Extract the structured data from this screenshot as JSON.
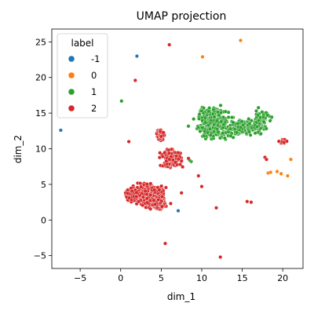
{
  "chart_data": {
    "type": "scatter",
    "title": "UMAP projection",
    "xlabel": "dim_1",
    "ylabel": "dim_2",
    "xlim": [
      -8.5,
      22.5
    ],
    "ylim": [
      -6.8,
      26.8
    ],
    "xticks": [
      -5,
      0,
      5,
      10,
      15,
      20
    ],
    "yticks": [
      -5,
      0,
      5,
      10,
      15,
      20,
      25
    ],
    "grid": false,
    "legend": {
      "title": "label",
      "placement": "upper-left",
      "entries": [
        {
          "label": "-1",
          "color": "#1f77b4"
        },
        {
          "label": "0",
          "color": "#ff7f0e"
        },
        {
          "label": "1",
          "color": "#2ca02c"
        },
        {
          "label": "2",
          "color": "#d62728"
        }
      ]
    },
    "series": [
      {
        "label": "-1",
        "color": "#1f77b4",
        "points": [
          [
            -7.4,
            12.6
          ],
          [
            2.0,
            23.0
          ],
          [
            7.1,
            1.3
          ]
        ]
      },
      {
        "label": "0",
        "color": "#ff7f0e",
        "points": [
          [
            14.8,
            25.2
          ],
          [
            10.1,
            22.9
          ],
          [
            18.2,
            6.6
          ],
          [
            18.5,
            6.7
          ],
          [
            19.3,
            6.8
          ],
          [
            19.8,
            6.5
          ],
          [
            20.6,
            6.2
          ],
          [
            21.0,
            8.5
          ]
        ]
      },
      {
        "label": "1",
        "color": "#2ca02c",
        "points": [
          [
            0.1,
            16.7
          ],
          [
            8.7,
            8.2
          ],
          [
            8.5,
            8.4
          ]
        ],
        "clusters": [
          {
            "center": [
              11.4,
              13.3
            ],
            "spread": [
              1.7,
              1.7
            ],
            "count": 260
          },
          {
            "center": [
              14.8,
              12.9
            ],
            "spread": [
              1.6,
              1.0
            ],
            "count": 130
          },
          {
            "center": [
              17.2,
              13.8
            ],
            "spread": [
              0.9,
              1.2
            ],
            "count": 110
          },
          {
            "center": [
              11.2,
              15.2
            ],
            "spread": [
              1.2,
              0.5
            ],
            "count": 60
          }
        ]
      },
      {
        "label": "2",
        "color": "#d62728",
        "points": [
          [
            6.0,
            24.6
          ],
          [
            1.8,
            19.6
          ],
          [
            1.0,
            11.0
          ],
          [
            9.6,
            6.2
          ],
          [
            10.0,
            4.7
          ],
          [
            7.5,
            3.8
          ],
          [
            11.8,
            1.7
          ],
          [
            15.6,
            2.6
          ],
          [
            16.1,
            2.5
          ],
          [
            5.5,
            -3.3
          ],
          [
            12.3,
            -5.2
          ],
          [
            17.8,
            8.8
          ],
          [
            18.0,
            8.5
          ]
        ],
        "clusters": [
          {
            "center": [
              3.4,
              3.6
            ],
            "spread": [
              1.6,
              1.0
            ],
            "count": 560
          },
          {
            "center": [
              1.3,
              3.5
            ],
            "spread": [
              0.7,
              0.7
            ],
            "count": 90
          },
          {
            "center": [
              4.6,
              2.2
            ],
            "spread": [
              0.8,
              0.6
            ],
            "count": 120
          },
          {
            "center": [
              6.2,
              8.6
            ],
            "spread": [
              1.1,
              1.0
            ],
            "count": 190
          },
          {
            "center": [
              4.9,
              12.0
            ],
            "spread": [
              0.4,
              0.7
            ],
            "count": 45
          },
          {
            "center": [
              20.2,
              11.0
            ],
            "spread": [
              0.4,
              0.3
            ],
            "count": 22
          }
        ]
      }
    ]
  }
}
